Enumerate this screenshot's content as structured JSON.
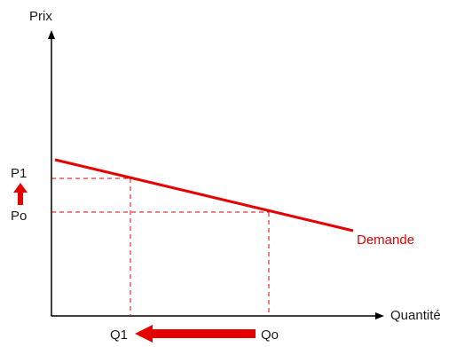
{
  "labels": {
    "y_axis": "Prix",
    "x_axis": "Quantité",
    "p1": "P1",
    "p0": "Po",
    "q1": "Q1",
    "q0": "Qo",
    "curve": "Demande"
  },
  "colors": {
    "axis": "#000000",
    "curve": "#e60000",
    "guides": "#e60000",
    "arrows": "#e60000",
    "text": "#1a1a1a"
  },
  "icons": {
    "price_increase": "arrow-up-icon",
    "quantity_decrease": "arrow-left-icon"
  }
}
